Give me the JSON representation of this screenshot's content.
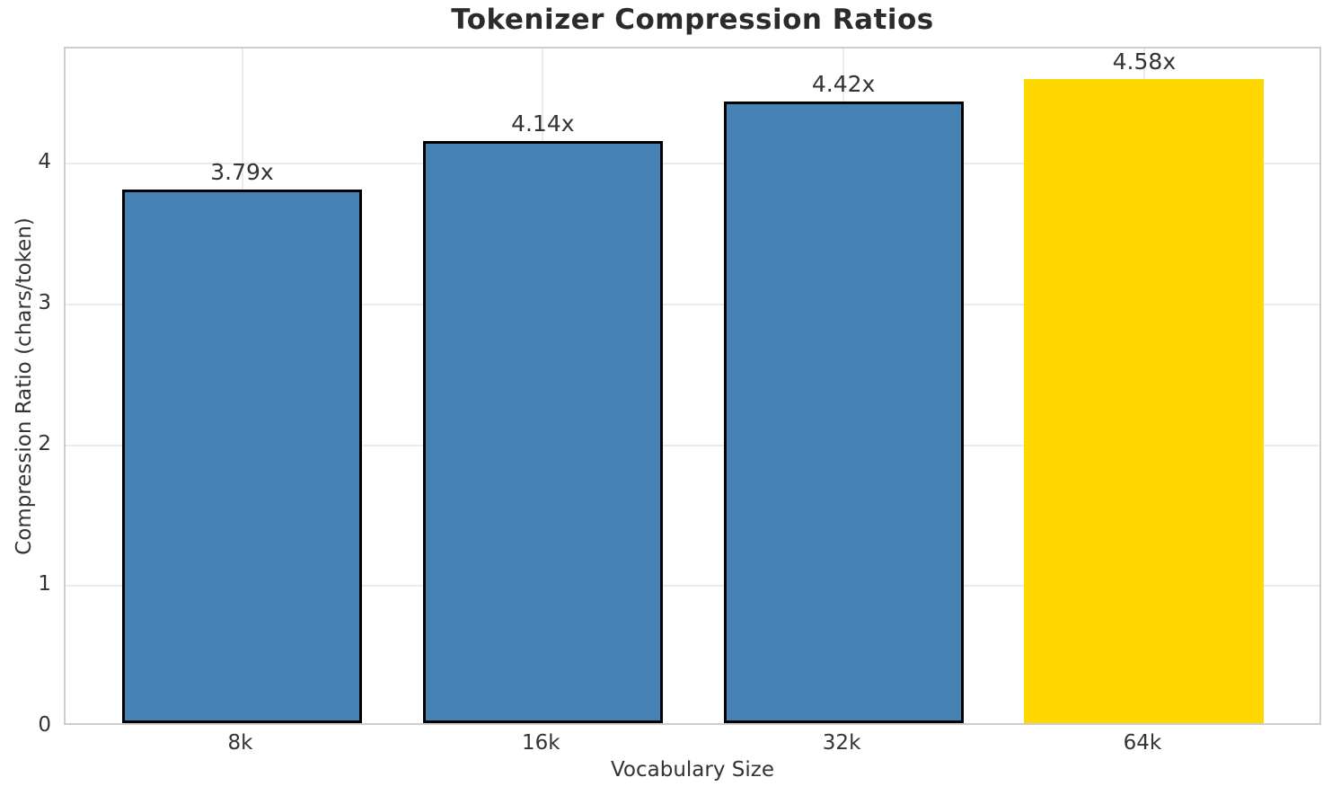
{
  "title": "Tokenizer Compression Ratios",
  "chart_data": {
    "type": "bar",
    "title": "Tokenizer Compression Ratios",
    "xlabel": "Vocabulary Size",
    "ylabel": "Compression Ratio (chars/token)",
    "categories": [
      "8k",
      "16k",
      "32k",
      "64k"
    ],
    "values": [
      3.79,
      4.14,
      4.42,
      4.58
    ],
    "bar_labels": [
      "3.79x",
      "4.14x",
      "4.42x",
      "4.58x"
    ],
    "ylim": [
      0,
      4.82
    ],
    "yticks": [
      0,
      1,
      2,
      3,
      4
    ],
    "grid": true,
    "legend_position": "none",
    "bar_colors": [
      "#4682B4",
      "#4682B4",
      "#4682B4",
      "#FFD700"
    ],
    "bar_edge_colors": [
      "#000000",
      "#000000",
      "#000000",
      "none"
    ],
    "highlight": {
      "index": 3,
      "color": "#FFD700",
      "meaning": "largest vocabulary (64k)"
    }
  },
  "colors": {
    "background": "#ffffff",
    "title_text": "#2b2b2b",
    "tick_text": "#333333",
    "grid": "#ebebeb",
    "spine": "#cdcdcd",
    "bar_blue": "#4682B4",
    "bar_gold": "#FFD700",
    "bar_edge": "#000000"
  }
}
